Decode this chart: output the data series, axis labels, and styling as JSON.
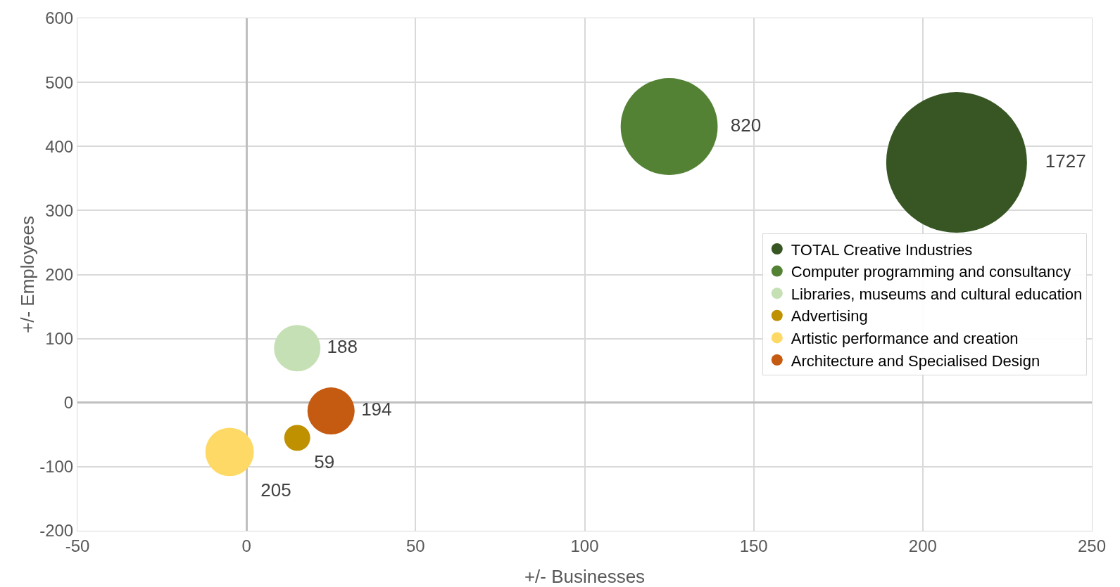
{
  "chart_data": {
    "type": "bubble",
    "xlabel": "+/- Businesses",
    "ylabel": "+/- Employees",
    "xlim": [
      -50,
      250
    ],
    "xticks": [
      -50,
      0,
      50,
      100,
      150,
      200,
      250
    ],
    "ylim": [
      -200,
      600
    ],
    "yticks": [
      -200,
      -100,
      0,
      100,
      200,
      300,
      400,
      500,
      600
    ],
    "grid": true,
    "legend": "right",
    "series": [
      {
        "name": "TOTAL Creative Industries",
        "color": "#375623",
        "x": [
          210
        ],
        "values": [
          375
        ],
        "sizes": [
          1727
        ],
        "value_labels": [
          "1727"
        ]
      },
      {
        "name": "Computer programming and consultancy",
        "color": "#548235",
        "x": [
          125
        ],
        "values": [
          431
        ],
        "sizes": [
          820
        ],
        "value_labels": [
          "820"
        ]
      },
      {
        "name": "Libraries, museums and cultural education",
        "color": "#c5e0b4",
        "x": [
          15
        ],
        "values": [
          85
        ],
        "sizes": [
          188
        ],
        "value_labels": [
          "188"
        ]
      },
      {
        "name": "Advertising",
        "color": "#bf9000",
        "x": [
          15
        ],
        "values": [
          -55
        ],
        "sizes": [
          59
        ],
        "value_labels": [
          "59"
        ]
      },
      {
        "name": "Artistic performance and creation",
        "color": "#ffd966",
        "x": [
          -5
        ],
        "values": [
          -77
        ],
        "sizes": [
          205
        ],
        "value_labels": [
          "205"
        ]
      },
      {
        "name": "Architecture and Specialised Design",
        "color": "#c55a11",
        "x": [
          25
        ],
        "values": [
          -13
        ],
        "sizes": [
          194
        ],
        "value_labels": [
          "194"
        ]
      }
    ]
  }
}
